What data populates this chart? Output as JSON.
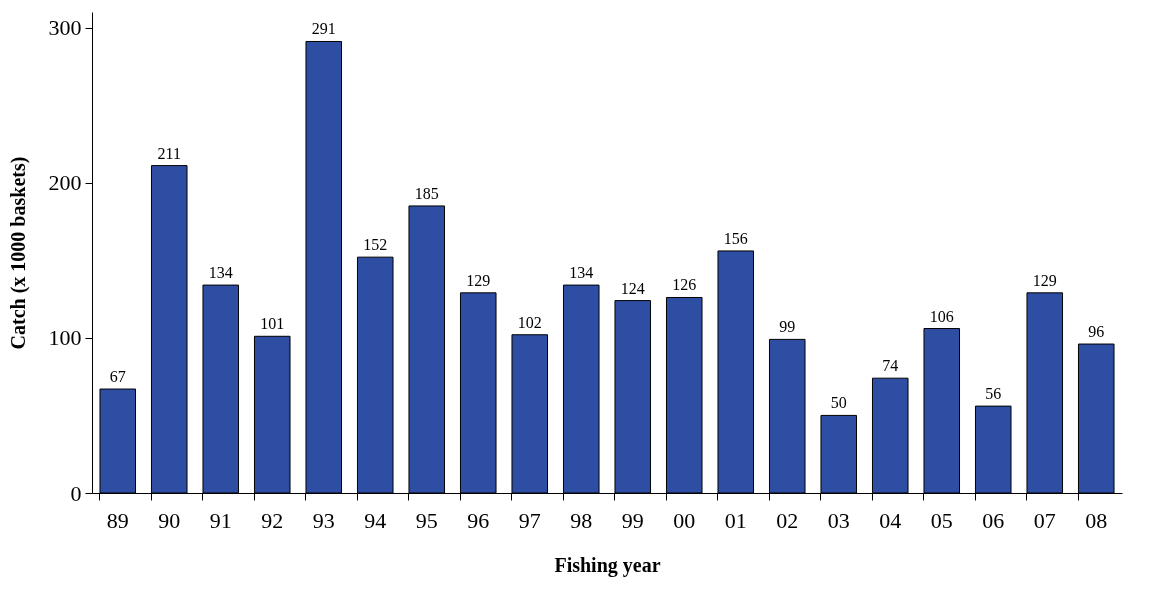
{
  "chart_data": {
    "type": "bar",
    "xlabel": "Fishing year",
    "ylabel": "Catch (x 1000 baskets)",
    "categories": [
      "89",
      "90",
      "91",
      "92",
      "93",
      "94",
      "95",
      "96",
      "97",
      "98",
      "99",
      "00",
      "01",
      "02",
      "03",
      "04",
      "05",
      "06",
      "07",
      "08"
    ],
    "values": [
      67,
      211,
      134,
      101,
      291,
      152,
      185,
      129,
      102,
      134,
      124,
      126,
      156,
      99,
      50,
      74,
      106,
      56,
      129,
      96
    ],
    "color": "#2e4ea3",
    "ylim": [
      0,
      310
    ],
    "yticks": [
      0,
      100,
      200,
      300
    ],
    "grid": false,
    "data_labels": true
  }
}
